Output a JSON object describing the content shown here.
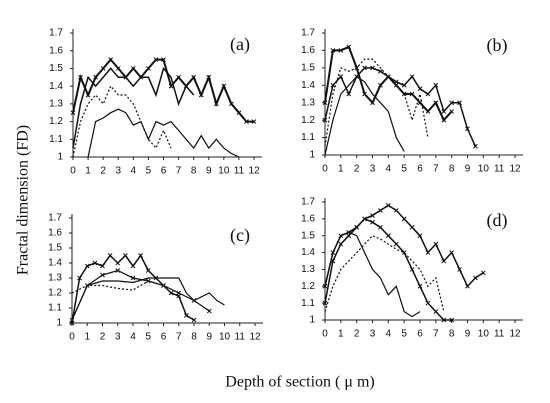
{
  "figure": {
    "xlabel": "Depth of section ( μ m)",
    "ylabel": "Fractal dimension (FD)"
  },
  "chart_data": [
    {
      "type": "line",
      "label": "(a)",
      "xlim": [
        0,
        12
      ],
      "ylim": [
        1,
        1.7
      ],
      "xticks": [
        0,
        1,
        2,
        3,
        4,
        5,
        6,
        7,
        8,
        9,
        10,
        11,
        12
      ],
      "yticks": [
        1,
        1.1,
        1.2,
        1.3,
        1.4,
        1.5,
        1.6,
        1.7
      ],
      "series": [
        {
          "color": "#111",
          "line_style": "solid",
          "marker": "x",
          "width": 2,
          "x": [
            0,
            0.5,
            1,
            1.5,
            2,
            2.5,
            3,
            3.5,
            4,
            4.5,
            5,
            5.5,
            6,
            6.5,
            7,
            7.5,
            8,
            8.5,
            9,
            9.5,
            10,
            10.5,
            11,
            11.5,
            12
          ],
          "values": [
            1.25,
            1.45,
            1.35,
            1.45,
            1.5,
            1.55,
            1.5,
            1.45,
            1.5,
            1.45,
            1.5,
            1.55,
            1.55,
            1.4,
            1.45,
            1.4,
            1.45,
            1.35,
            1.45,
            1.3,
            1.4,
            1.3,
            1.25,
            1.2,
            1.2
          ]
        },
        {
          "color": "#111",
          "line_style": "solid",
          "marker": "none",
          "width": 1.5,
          "x": [
            0,
            0.5,
            1,
            1.5,
            2,
            2.5,
            3,
            3.5,
            4,
            4.5,
            5,
            5.5,
            6,
            6.5,
            7,
            7.5,
            8
          ],
          "values": [
            1.05,
            1.3,
            1.45,
            1.4,
            1.45,
            1.5,
            1.45,
            1.45,
            1.4,
            1.45,
            1.45,
            1.35,
            1.5,
            1.45,
            1.3,
            1.4,
            1.35
          ]
        },
        {
          "color": "#111",
          "line_style": "dotted",
          "marker": "none",
          "width": 1.2,
          "x": [
            0,
            0.5,
            1,
            1.5,
            2,
            2.5,
            3,
            3.5,
            4,
            4.5,
            5,
            5.5,
            6,
            6.5
          ],
          "values": [
            1.0,
            1.2,
            1.3,
            1.35,
            1.3,
            1.4,
            1.35,
            1.35,
            1.3,
            1.2,
            1.1,
            1.05,
            1.15,
            1.05
          ]
        },
        {
          "color": "#111",
          "line_style": "solid",
          "marker": "none",
          "width": 1.2,
          "x": [
            1,
            1.5,
            2,
            2.5,
            3,
            3.5,
            4,
            4.5,
            5,
            5.5,
            6,
            6.5,
            7,
            7.5,
            8,
            8.5,
            9,
            9.5,
            10,
            10.5,
            11
          ],
          "values": [
            1.0,
            1.2,
            1.22,
            1.25,
            1.27,
            1.25,
            1.18,
            1.2,
            1.1,
            1.2,
            1.18,
            1.2,
            1.15,
            1.1,
            1.05,
            1.12,
            1.05,
            1.1,
            1.05,
            1.02,
            1.0
          ]
        }
      ]
    },
    {
      "type": "line",
      "label": "(b)",
      "xlim": [
        0,
        12
      ],
      "ylim": [
        1,
        1.7
      ],
      "xticks": [
        0,
        1,
        2,
        3,
        4,
        5,
        6,
        7,
        8,
        9,
        10,
        11,
        12
      ],
      "yticks": [
        1,
        1.1,
        1.2,
        1.3,
        1.4,
        1.5,
        1.6,
        1.7
      ],
      "series": [
        {
          "color": "#111",
          "line_style": "solid",
          "marker": "x",
          "width": 1.5,
          "x": [
            0,
            0.5,
            1,
            1.5,
            2,
            2.5,
            3,
            3.5,
            4,
            4.5,
            5,
            5.5,
            6,
            6.5,
            7,
            7.5,
            8,
            8.5,
            9,
            9.5
          ],
          "values": [
            1.2,
            1.4,
            1.45,
            1.35,
            1.45,
            1.5,
            1.5,
            1.48,
            1.45,
            1.42,
            1.4,
            1.45,
            1.38,
            1.35,
            1.4,
            1.25,
            1.3,
            1.3,
            1.15,
            1.05
          ]
        },
        {
          "color": "#111",
          "line_style": "solid",
          "marker": "x",
          "width": 2,
          "x": [
            0,
            0.5,
            1,
            1.5,
            2,
            2.5,
            3,
            3.5,
            4,
            4.5,
            5,
            5.5,
            6,
            6.5,
            7,
            7.5,
            8
          ],
          "values": [
            1.3,
            1.6,
            1.6,
            1.62,
            1.5,
            1.35,
            1.3,
            1.4,
            1.45,
            1.4,
            1.35,
            1.35,
            1.3,
            1.25,
            1.3,
            1.2,
            1.25
          ]
        },
        {
          "color": "#111",
          "line_style": "dotted",
          "marker": "none",
          "width": 1.2,
          "x": [
            0,
            0.5,
            1,
            1.5,
            2,
            2.5,
            3,
            3.5,
            4,
            4.5,
            5,
            5.5,
            6,
            6.5
          ],
          "values": [
            1.05,
            1.35,
            1.5,
            1.48,
            1.5,
            1.55,
            1.55,
            1.5,
            1.45,
            1.4,
            1.35,
            1.2,
            1.35,
            1.1
          ]
        },
        {
          "color": "#111",
          "line_style": "solid",
          "marker": "none",
          "width": 1.2,
          "x": [
            0,
            0.5,
            1,
            1.5,
            2,
            2.5,
            3,
            3.5,
            4,
            4.5,
            5
          ],
          "values": [
            1.0,
            1.2,
            1.35,
            1.4,
            1.45,
            1.42,
            1.35,
            1.3,
            1.25,
            1.1,
            1.02
          ]
        }
      ]
    },
    {
      "type": "line",
      "label": "(c)",
      "xlim": [
        0,
        12
      ],
      "ylim": [
        1,
        1.7
      ],
      "xticks": [
        0,
        1,
        2,
        3,
        4,
        5,
        6,
        7,
        8,
        9,
        10,
        11,
        12
      ],
      "yticks": [
        1,
        1.1,
        1.2,
        1.3,
        1.4,
        1.5,
        1.6,
        1.7
      ],
      "series": [
        {
          "color": "#111",
          "line_style": "solid",
          "marker": "x",
          "width": 1.5,
          "x": [
            0,
            0.5,
            1,
            1.5,
            2,
            2.5,
            3,
            3.5,
            4,
            4.5,
            5,
            5.5,
            6,
            6.5,
            7,
            7.5,
            8
          ],
          "values": [
            1.0,
            1.3,
            1.38,
            1.4,
            1.38,
            1.45,
            1.4,
            1.45,
            1.38,
            1.45,
            1.35,
            1.3,
            1.25,
            1.2,
            1.18,
            1.05,
            1.02
          ]
        },
        {
          "color": "#111",
          "line_style": "solid",
          "marker": "none",
          "width": 1.2,
          "x": [
            0,
            1,
            2,
            3,
            4,
            5,
            6,
            7,
            7.5,
            8,
            9,
            9.5,
            10
          ],
          "values": [
            1.02,
            1.25,
            1.28,
            1.28,
            1.27,
            1.3,
            1.3,
            1.3,
            1.2,
            1.15,
            1.2,
            1.15,
            1.12
          ]
        },
        {
          "color": "#111",
          "line_style": "dotted",
          "marker": "none",
          "width": 1.2,
          "x": [
            0,
            1,
            2,
            3,
            4,
            5,
            6,
            7
          ],
          "values": [
            1.2,
            1.25,
            1.25,
            1.23,
            1.22,
            1.28,
            1.25,
            1.2
          ]
        },
        {
          "color": "#111",
          "line_style": "solid",
          "marker": "x",
          "width": 1.2,
          "x": [
            0,
            1,
            2,
            3,
            4,
            5,
            6,
            7,
            8,
            9
          ],
          "values": [
            1.02,
            1.25,
            1.32,
            1.35,
            1.3,
            1.28,
            1.25,
            1.2,
            1.15,
            1.08
          ]
        }
      ]
    },
    {
      "type": "line",
      "label": "(d)",
      "xlim": [
        0,
        12
      ],
      "ylim": [
        1,
        1.7
      ],
      "xticks": [
        0,
        1,
        2,
        3,
        4,
        5,
        6,
        7,
        8,
        9,
        10,
        11,
        12
      ],
      "yticks": [
        1,
        1.1,
        1.2,
        1.3,
        1.4,
        1.5,
        1.6,
        1.7
      ],
      "series": [
        {
          "color": "#111",
          "line_style": "solid",
          "marker": "x",
          "width": 1.5,
          "x": [
            0,
            0.5,
            1,
            1.5,
            2,
            2.5,
            3,
            3.5,
            4,
            4.5,
            5,
            5.5,
            6,
            6.5,
            7,
            7.5,
            8,
            8.5,
            9,
            9.5,
            10
          ],
          "values": [
            1.1,
            1.35,
            1.45,
            1.5,
            1.55,
            1.6,
            1.62,
            1.65,
            1.68,
            1.65,
            1.6,
            1.55,
            1.5,
            1.4,
            1.45,
            1.35,
            1.4,
            1.3,
            1.2,
            1.25,
            1.28
          ]
        },
        {
          "color": "#111",
          "line_style": "solid",
          "marker": "x",
          "width": 1.5,
          "x": [
            0,
            0.5,
            1,
            1.5,
            2,
            2.5,
            3,
            3.5,
            4,
            4.5,
            5,
            5.5,
            6,
            6.5,
            7,
            7.5,
            8
          ],
          "values": [
            1.2,
            1.4,
            1.5,
            1.52,
            1.55,
            1.6,
            1.58,
            1.55,
            1.5,
            1.45,
            1.4,
            1.3,
            1.2,
            1.1,
            1.05,
            1.0,
            1.0
          ]
        },
        {
          "color": "#111",
          "line_style": "dotted",
          "marker": "none",
          "width": 1.2,
          "x": [
            0,
            0.5,
            1,
            1.5,
            2,
            2.5,
            3,
            3.5,
            4,
            4.5,
            5,
            5.5,
            6,
            6.5,
            7,
            7.5
          ],
          "values": [
            1.05,
            1.2,
            1.3,
            1.35,
            1.4,
            1.45,
            1.5,
            1.48,
            1.45,
            1.42,
            1.4,
            1.35,
            1.3,
            1.2,
            1.25,
            1.05
          ]
        },
        {
          "color": "#111",
          "line_style": "solid",
          "marker": "none",
          "width": 1.2,
          "x": [
            0,
            0.5,
            1,
            1.5,
            2,
            2.5,
            3,
            3.5,
            4,
            4.5,
            5,
            5.5,
            6
          ],
          "values": [
            1.2,
            1.4,
            1.5,
            1.52,
            1.5,
            1.4,
            1.3,
            1.25,
            1.15,
            1.2,
            1.05,
            1.02,
            1.05
          ]
        }
      ]
    }
  ]
}
